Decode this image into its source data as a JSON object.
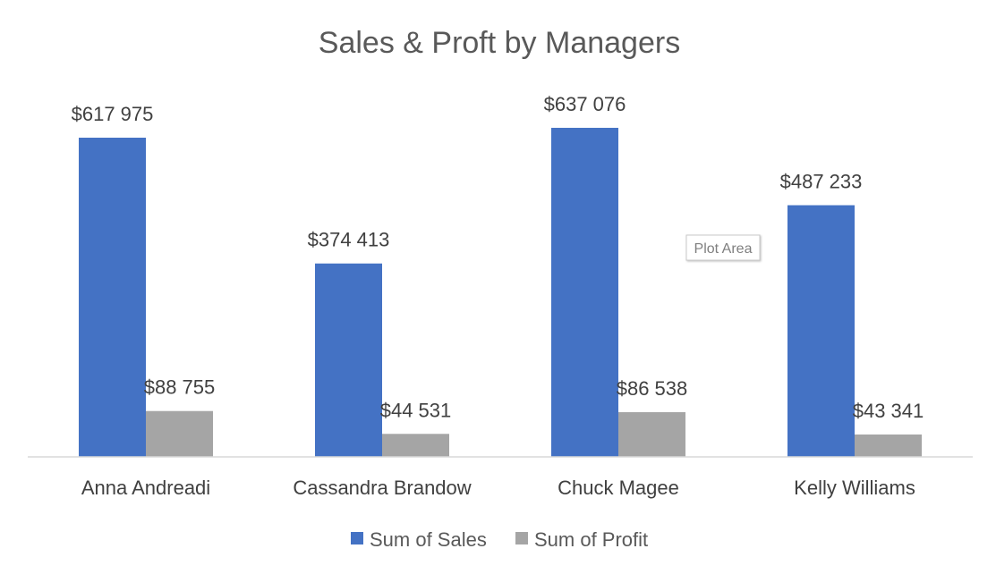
{
  "chart_data": {
    "type": "bar",
    "title": "Sales & Proft by Managers",
    "xlabel": "",
    "ylabel": "",
    "categories": [
      "Anna Andreadi",
      "Cassandra Brandow",
      "Chuck Magee",
      "Kelly Williams"
    ],
    "series": [
      {
        "name": "Sum of Sales",
        "color": "#4472C4",
        "values": [
          617975,
          374413,
          637076,
          487233
        ],
        "labels": [
          "$617 975",
          "$374 413",
          "$637 076",
          "$487 233"
        ]
      },
      {
        "name": "Sum of Profit",
        "color": "#A5A5A5",
        "values": [
          88755,
          44531,
          86538,
          43341
        ],
        "labels": [
          "$88 755",
          "$44 531",
          "$86 538",
          "$43 341"
        ]
      }
    ],
    "ylim": [
      0,
      620000
    ],
    "grid": false,
    "legend": "bottom",
    "data_labels": true
  },
  "tooltip": {
    "text": "Plot Area"
  }
}
